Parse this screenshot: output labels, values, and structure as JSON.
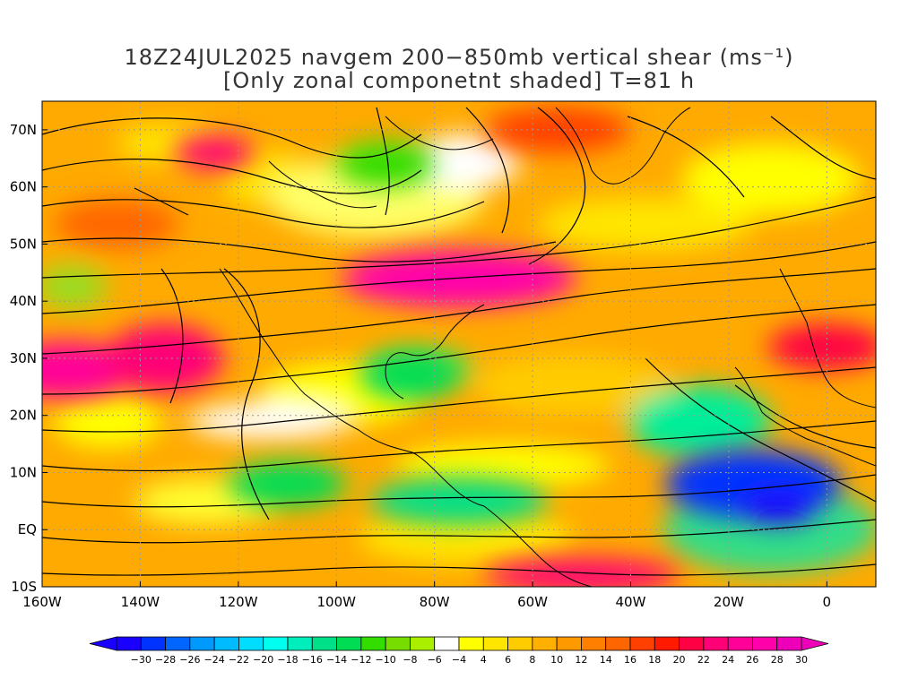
{
  "title": {
    "line1": "18Z24JUL2025 navgem 200−850mb vertical shear (ms⁻¹)",
    "line2": "[Only zonal componetnt shaded] T=81 h"
  },
  "map": {
    "lon_range": [
      -160,
      10
    ],
    "lat_range": [
      -10,
      75
    ],
    "lon_ticks": [
      {
        "value": -160,
        "label": "160W"
      },
      {
        "value": -140,
        "label": "140W"
      },
      {
        "value": -120,
        "label": "120W"
      },
      {
        "value": -100,
        "label": "100W"
      },
      {
        "value": -80,
        "label": "80W"
      },
      {
        "value": -60,
        "label": "60W"
      },
      {
        "value": -40,
        "label": "40W"
      },
      {
        "value": -20,
        "label": "20W"
      },
      {
        "value": 0,
        "label": "0"
      }
    ],
    "lat_ticks": [
      {
        "value": 70,
        "label": "70N"
      },
      {
        "value": 60,
        "label": "60N"
      },
      {
        "value": 50,
        "label": "50N"
      },
      {
        "value": 40,
        "label": "40N"
      },
      {
        "value": 30,
        "label": "30N"
      },
      {
        "value": 20,
        "label": "20N"
      },
      {
        "value": 10,
        "label": "10N"
      },
      {
        "value": 0,
        "label": "EQ"
      },
      {
        "value": -10,
        "label": "10S"
      }
    ],
    "grid": true
  },
  "colorbar": {
    "labels": [
      "−30",
      "−28",
      "−26",
      "−24",
      "−22",
      "−20",
      "−18",
      "−16",
      "−14",
      "−12",
      "−10",
      "−8",
      "−6",
      "−4",
      "4",
      "6",
      "8",
      "10",
      "12",
      "14",
      "16",
      "18",
      "20",
      "22",
      "24",
      "26",
      "28",
      "30"
    ],
    "colors": [
      "#1a00ff",
      "#0033ff",
      "#0066ff",
      "#0099ff",
      "#00bbff",
      "#00ddff",
      "#00ffee",
      "#00eebb",
      "#00e088",
      "#00dd55",
      "#33dd00",
      "#77dd00",
      "#aaee00",
      "#ffffff",
      "#ffff00",
      "#ffe600",
      "#ffcc00",
      "#ffb000",
      "#ff9900",
      "#ff7f00",
      "#ff6600",
      "#ff4000",
      "#ff1a00",
      "#ff0044",
      "#ff0077",
      "#ff0099",
      "#ff00aa",
      "#ee00bb"
    ],
    "min_color": "#1a00ff",
    "max_color": "#ee00bb"
  },
  "shading_blobs": [
    {
      "lon": -155,
      "lat": 28,
      "rx": 14,
      "ry": 5,
      "value": 26
    },
    {
      "lon": -135,
      "lat": 30,
      "rx": 12,
      "ry": 6,
      "value": 24
    },
    {
      "lon": -75,
      "lat": 44,
      "rx": 24,
      "ry": 5,
      "value": 28
    },
    {
      "lon": -125,
      "lat": 66,
      "rx": 8,
      "ry": 3,
      "value": 24
    },
    {
      "lon": -15,
      "lat": 8,
      "rx": 18,
      "ry": 6,
      "value": -28
    },
    {
      "lon": -10,
      "lat": 4,
      "rx": 8,
      "ry": 3,
      "value": -30
    },
    {
      "lon": -110,
      "lat": 8,
      "rx": 12,
      "ry": 4,
      "value": -12
    },
    {
      "lon": -85,
      "lat": 27,
      "rx": 10,
      "ry": 4,
      "value": -12
    },
    {
      "lon": -75,
      "lat": 5,
      "rx": 18,
      "ry": 4,
      "value": -14
    },
    {
      "lon": -90,
      "lat": 64,
      "rx": 10,
      "ry": 4,
      "value": -10
    },
    {
      "lon": -50,
      "lat": -8,
      "rx": 20,
      "ry": 3,
      "value": 24
    },
    {
      "lon": -55,
      "lat": 70,
      "rx": 15,
      "ry": 4,
      "value": 18
    },
    {
      "lon": 0,
      "lat": 32,
      "rx": 12,
      "ry": 4,
      "value": 22
    }
  ]
}
